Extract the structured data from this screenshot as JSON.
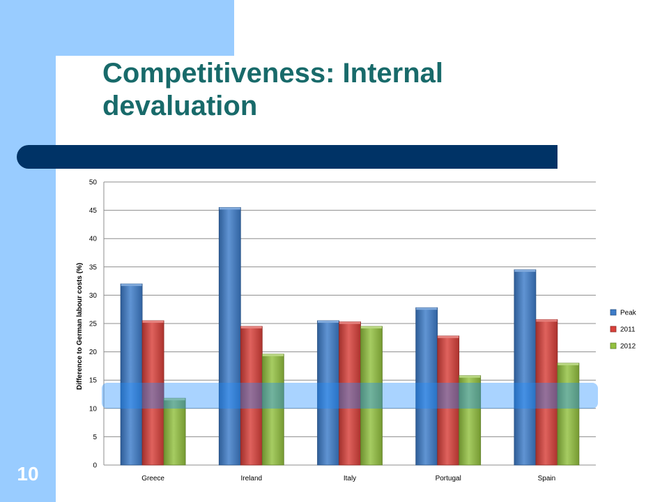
{
  "slide": {
    "title": "Competitiveness: Internal devaluation",
    "number": "10"
  },
  "colors": {
    "title": "#186a6a",
    "side_band": "#99ccff",
    "divider": "#003366",
    "highlight": "#1e8cff"
  },
  "chart_data": {
    "type": "bar",
    "title": "",
    "xlabel": "",
    "ylabel": "Difference to German labour costs (%)",
    "ylim": [
      0,
      50
    ],
    "yticks": [
      0,
      5,
      10,
      15,
      20,
      25,
      30,
      35,
      40,
      45,
      50
    ],
    "grid": true,
    "legend_position": "right",
    "categories": [
      "Greece",
      "Ireland",
      "Italy",
      "Portugal",
      "Spain"
    ],
    "series": [
      {
        "name": "Peak",
        "color": "#3d7cc9",
        "values": [
          32,
          45.5,
          25.5,
          27.8,
          34.5
        ]
      },
      {
        "name": "2011",
        "color": "#d8403a",
        "values": [
          25.5,
          24.5,
          25.3,
          22.8,
          25.7
        ]
      },
      {
        "name": "2012",
        "color": "#93c13f",
        "values": [
          11.8,
          19.6,
          24.5,
          15.8,
          18
        ]
      }
    ],
    "highlight_band": [
      10,
      15
    ]
  }
}
